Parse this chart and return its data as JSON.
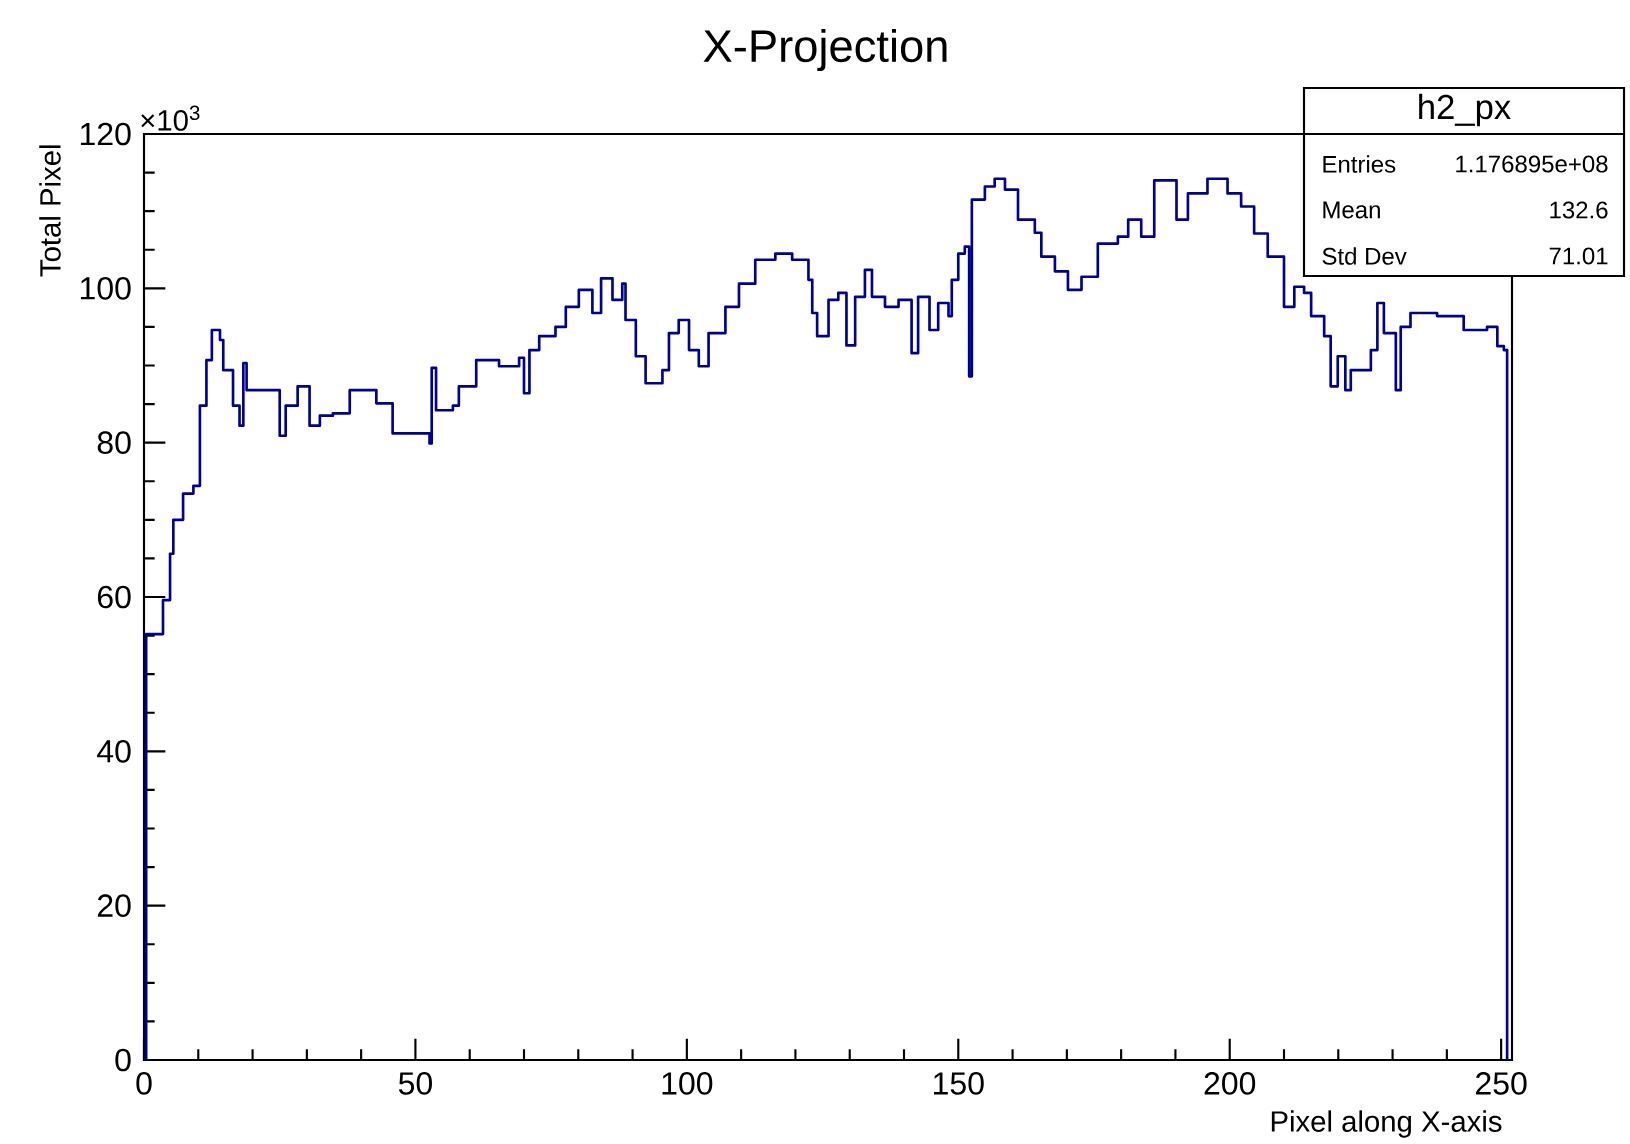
{
  "chart_data": {
    "type": "step",
    "title": "X-Projection",
    "xlabel": "Pixel along X-axis",
    "ylabel": "Total Pixel",
    "color": "#000099",
    "x": [
      0,
      0.4,
      3.5,
      4.8,
      5.4,
      7.2,
      9.1,
      10.3,
      11.5,
      12.5,
      14,
      14.6,
      16.4,
      17.6,
      18.3,
      18.9,
      21.9,
      25,
      26.1,
      28.3,
      30.5,
      32.4,
      34.8,
      37.9,
      41.5,
      42.8,
      45.8,
      49.5,
      52.6,
      53,
      53.8,
      56.9,
      58,
      61.2,
      64.2,
      65.4,
      69.1,
      70,
      71,
      72.8,
      75.8,
      77.7,
      80.1,
      82.6,
      84.2,
      86.3,
      88.1,
      88.7,
      90.6,
      92.4,
      95.5,
      96.7,
      98.5,
      100.4,
      102.2,
      104,
      107.1,
      109.6,
      112.6,
      116.3,
      119.4,
      122.4,
      123.1,
      124,
      126.1,
      127.9,
      129.4,
      131,
      132.8,
      134.1,
      136.5,
      139,
      141.4,
      142.6,
      144.7,
      146.3,
      148.2,
      148.8,
      150,
      151.2,
      152,
      152.5,
      154.9,
      156.7,
      158.6,
      161,
      164.1,
      165.3,
      167.8,
      170.2,
      172.7,
      175.7,
      179.4,
      181.3,
      183.7,
      186.1,
      188.6,
      190.2,
      192.3,
      195.9,
      199.6,
      202.1,
      204.5,
      207,
      210,
      211.9,
      213.7,
      215,
      217.4,
      218.6,
      219.9,
      221.3,
      222.3,
      224.7,
      226,
      227.2,
      228.4,
      230.6,
      231.5,
      233.3,
      238.2,
      243.1,
      247.4,
      249.3,
      250.5,
      251.1
    ],
    "values": [
      0,
      55.2,
      59.6,
      65.6,
      70,
      73.4,
      74.4,
      84.8,
      90.7,
      94.6,
      93.3,
      89.4,
      84.8,
      82.2,
      90.3,
      86.8,
      86.8,
      80.9,
      84.8,
      87.3,
      82.2,
      83.5,
      83.8,
      86.8,
      86.8,
      85.1,
      81.2,
      81.2,
      79.9,
      89.7,
      84.2,
      84.8,
      87.3,
      90.7,
      90.7,
      89.9,
      91,
      86.4,
      92,
      93.8,
      95,
      97.6,
      99.8,
      96.8,
      101.3,
      98.5,
      100.6,
      95.9,
      91.2,
      87.7,
      89.4,
      94.2,
      95.9,
      92,
      89.9,
      94.2,
      97.6,
      100.6,
      103.7,
      104.5,
      103.7,
      101.1,
      96.8,
      93.8,
      98.5,
      99.4,
      92.6,
      98.9,
      102.4,
      98.9,
      97.6,
      98.5,
      91.6,
      98.9,
      94.6,
      98.1,
      96.4,
      101.1,
      104.5,
      105.4,
      88.6,
      111.5,
      113.2,
      114.2,
      112.8,
      108.9,
      107.2,
      104.1,
      102.2,
      99.8,
      101.5,
      105.8,
      106.7,
      108.9,
      106.7,
      114,
      114,
      108.9,
      112.3,
      114.2,
      112.3,
      110.6,
      107.1,
      104.1,
      97.6,
      100.2,
      99.4,
      96.4,
      93.8,
      87.3,
      91.2,
      86.8,
      89.4,
      89.4,
      92,
      98.1,
      94.2,
      86.8,
      95,
      96.8,
      96.4,
      94.6,
      95,
      92.5,
      92,
      0
    ],
    "xlim": [
      0,
      252
    ],
    "ylim": [
      0,
      120
    ],
    "xticks": [
      0,
      50,
      100,
      150,
      200,
      250
    ],
    "yticks": [
      0,
      20,
      40,
      60,
      80,
      100,
      120
    ],
    "annotations": [
      "×10$^{3}$",
      "h2_px",
      "Entries",
      "1.176895e+08",
      "Mean",
      "132.6",
      "Std Dev",
      "71.01"
    ]
  }
}
